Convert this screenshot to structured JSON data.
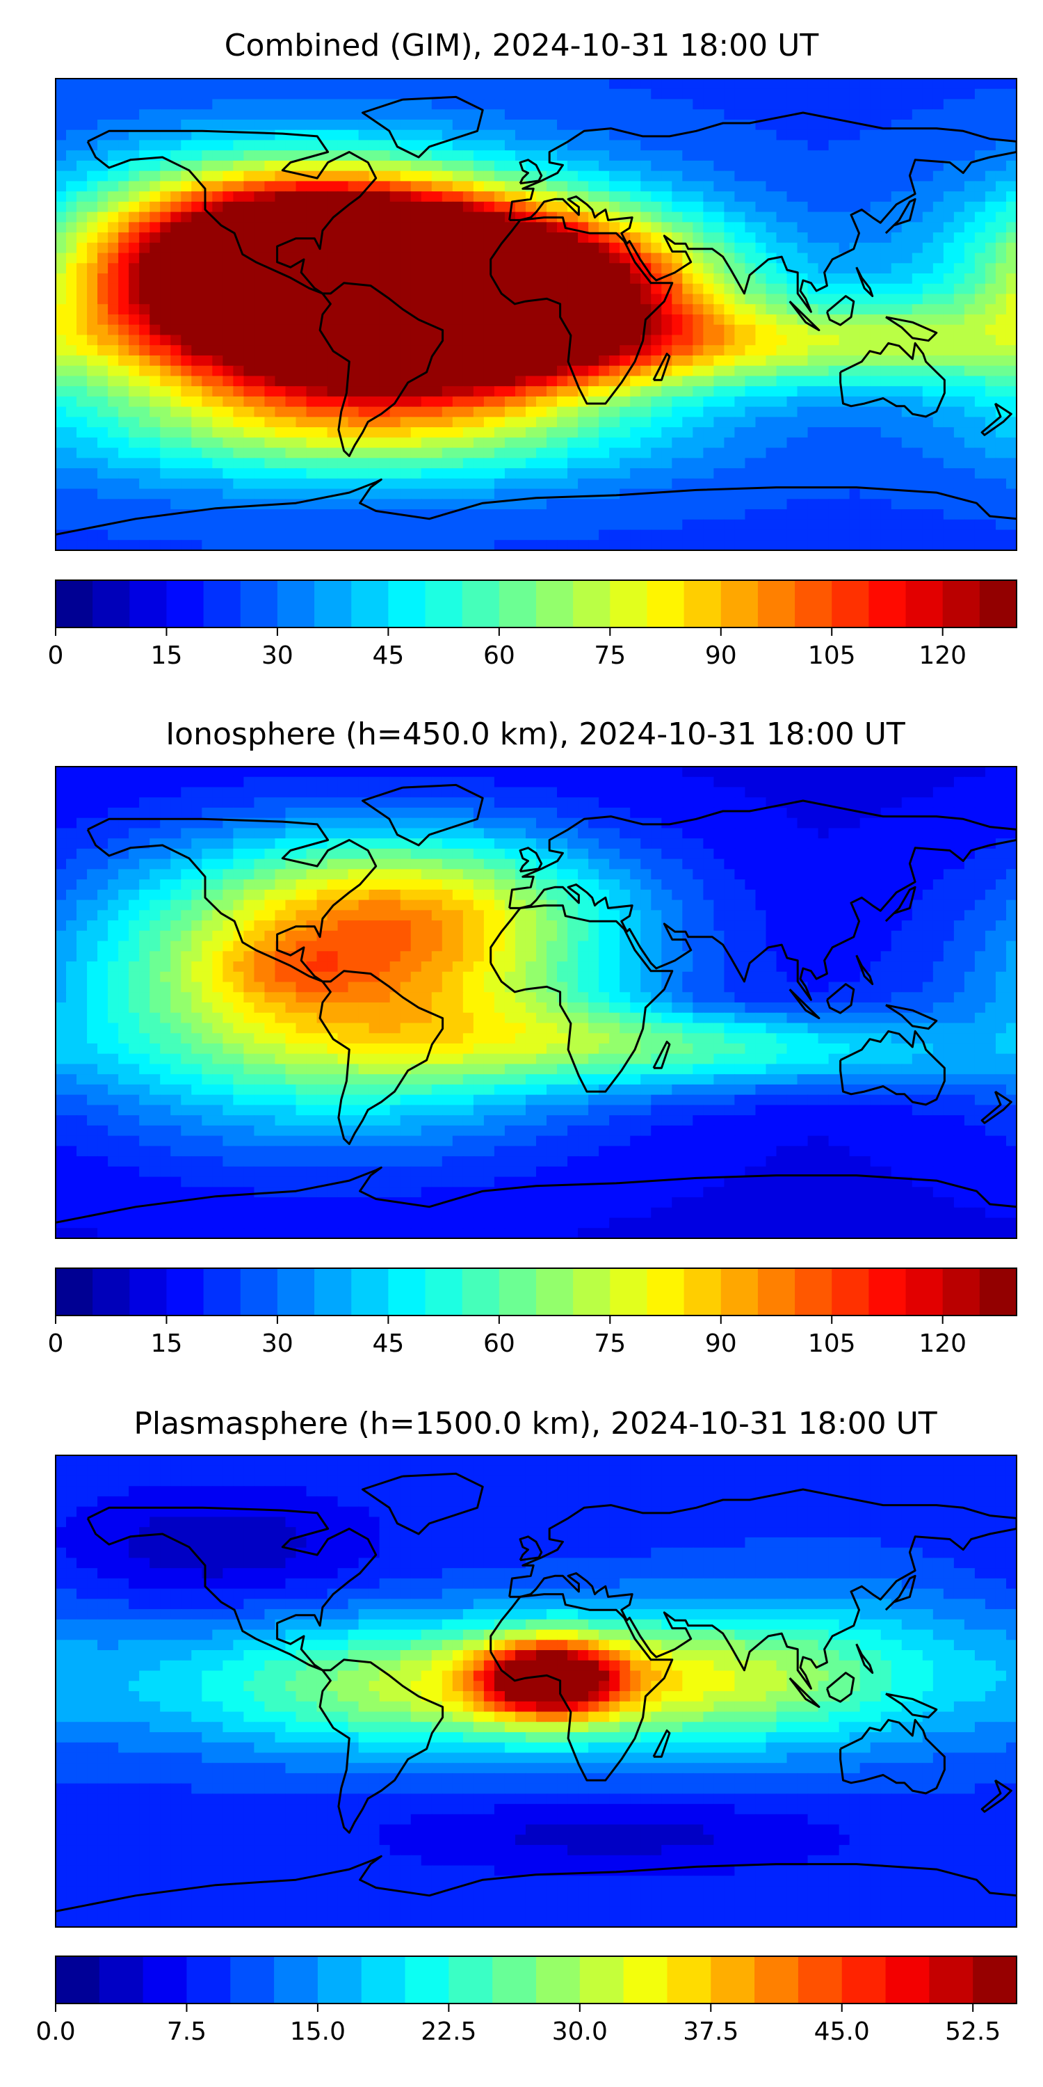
{
  "chart_data": [
    {
      "type": "heatmap",
      "title": "Combined (GIM), 2024-10-31 18:00 UT",
      "xlabel": "",
      "ylabel": "",
      "xlim": [
        -180,
        180
      ],
      "ylim": [
        -90,
        90
      ],
      "colorbar": {
        "range": [
          0,
          130
        ],
        "levels": 26,
        "ticks": [
          0,
          15,
          30,
          45,
          60,
          75,
          90,
          105,
          120
        ],
        "tick_labels": [
          "0",
          "15",
          "30",
          "45",
          "60",
          "75",
          "90",
          "105",
          "120"
        ]
      },
      "base": 24,
      "features": [
        {
          "lon": -75,
          "lat": 6,
          "value": 115,
          "sx": 70,
          "sy": 30
        },
        {
          "lon": -40,
          "lat": 4,
          "value": 95,
          "sx": 55,
          "sy": 22
        },
        {
          "lon": -95,
          "lat": 28,
          "value": 60,
          "sx": 45,
          "sy": 20
        },
        {
          "lon": -10,
          "lat": 15,
          "value": 45,
          "sx": 60,
          "sy": 18
        },
        {
          "lon": 60,
          "lat": -12,
          "value": 35,
          "sx": 70,
          "sy": 12
        },
        {
          "lon": 130,
          "lat": -10,
          "value": 18,
          "sx": 40,
          "sy": 12
        },
        {
          "lon": -60,
          "lat": -45,
          "value": 28,
          "sx": 80,
          "sy": 15
        }
      ]
    },
    {
      "type": "heatmap",
      "title": "Ionosphere  (h=450.0 km), 2024-10-31 18:00 UT",
      "xlabel": "",
      "ylabel": "",
      "xlim": [
        -180,
        180
      ],
      "ylim": [
        -90,
        90
      ],
      "colorbar": {
        "range": [
          0,
          130
        ],
        "levels": 26,
        "ticks": [
          0,
          15,
          30,
          45,
          60,
          75,
          90,
          105,
          120
        ],
        "tick_labels": [
          "0",
          "15",
          "30",
          "45",
          "60",
          "75",
          "90",
          "105",
          "120"
        ]
      },
      "base": 14,
      "features": [
        {
          "lon": -75,
          "lat": 4,
          "value": 72,
          "sx": 70,
          "sy": 35
        },
        {
          "lon": -95,
          "lat": 12,
          "value": 10,
          "sx": 20,
          "sy": 8
        },
        {
          "lon": -45,
          "lat": 38,
          "value": 38,
          "sx": 55,
          "sy": 20
        },
        {
          "lon": 30,
          "lat": -15,
          "value": 30,
          "sx": 60,
          "sy": 12
        },
        {
          "lon": 110,
          "lat": -20,
          "value": 18,
          "sx": 50,
          "sy": 10
        },
        {
          "lon": 60,
          "lat": 0,
          "value": -8,
          "sx": 25,
          "sy": 6
        }
      ]
    },
    {
      "type": "heatmap",
      "title": "Plasmasphere (h=1500.0 km), 2024-10-31 18:00 UT",
      "xlabel": "",
      "ylabel": "",
      "xlim": [
        -180,
        180
      ],
      "ylim": [
        -90,
        90
      ],
      "colorbar": {
        "range": [
          0,
          55
        ],
        "levels": 22,
        "ticks": [
          0,
          7.5,
          15,
          22.5,
          30,
          37.5,
          45,
          52.5
        ],
        "tick_labels": [
          "0.0",
          "7.5",
          "15.0",
          "22.5",
          "30.0",
          "37.5",
          "45.0",
          "52.5"
        ]
      },
      "base": 9,
      "features": [
        {
          "lon": 5,
          "lat": 5,
          "value": 34,
          "sx": 18,
          "sy": 10
        },
        {
          "lon": -40,
          "lat": 2,
          "value": 20,
          "sx": 75,
          "sy": 18
        },
        {
          "lon": 60,
          "lat": 5,
          "value": 14,
          "sx": 60,
          "sy": 18
        },
        {
          "lon": 120,
          "lat": 10,
          "value": 6,
          "sx": 50,
          "sy": 25
        },
        {
          "lon": -120,
          "lat": 55,
          "value": -6,
          "sx": 40,
          "sy": 15
        },
        {
          "lon": 30,
          "lat": -55,
          "value": -5,
          "sx": 60,
          "sy": 10
        }
      ]
    }
  ]
}
